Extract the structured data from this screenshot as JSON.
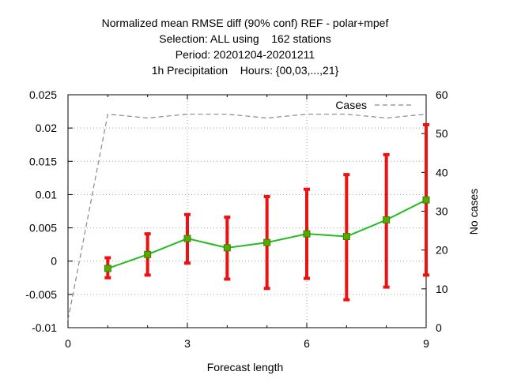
{
  "chart_data": {
    "type": "line",
    "title_lines": [
      "Normalized mean RMSE diff (90% conf) REF - polar+mpef",
      "Selection: ALL using    162 stations",
      "Period: 20201204-20201211",
      "1h Precipitation    Hours: {00,03,...,21}"
    ],
    "xlabel": "Forecast length",
    "ylabel": "",
    "y2label": "No cases",
    "xlim": [
      0,
      9
    ],
    "ylim": [
      -0.01,
      0.025
    ],
    "y2lim": [
      0,
      60
    ],
    "x_ticks": [
      "0",
      "3",
      "6",
      "9"
    ],
    "x_tick_values": [
      0,
      3,
      6,
      9
    ],
    "y_ticks": [
      "-0.01",
      "-0.005",
      "0",
      "0.005",
      "0.01",
      "0.015",
      "0.02",
      "0.025"
    ],
    "y_tick_values": [
      -0.01,
      -0.005,
      0,
      0.005,
      0.01,
      0.015,
      0.02,
      0.025
    ],
    "y2_ticks": [
      "0",
      "10",
      "20",
      "30",
      "40",
      "50",
      "60"
    ],
    "y2_tick_values": [
      0,
      10,
      20,
      30,
      40,
      50,
      60
    ],
    "grid": true,
    "legend_position": "top-right",
    "series": [
      {
        "x": [
          1,
          2,
          3,
          4,
          5,
          6,
          7,
          8,
          9
        ],
        "values": [
          -0.0011,
          0.001,
          0.0034,
          0.002,
          0.0028,
          0.0041,
          0.0037,
          0.0062,
          0.0092
        ],
        "err_low": [
          -0.0025,
          -0.0021,
          -0.0003,
          -0.0027,
          -0.0041,
          -0.0026,
          -0.0058,
          -0.0039,
          -0.0021
        ],
        "err_high": [
          0.0005,
          0.0041,
          0.007,
          0.0066,
          0.0097,
          0.0108,
          0.013,
          0.016,
          0.0205
        ],
        "color": "#22bb22",
        "marker_color": "#55aa00",
        "error_color": "#ee1111"
      },
      {
        "name": "Cases",
        "axis": "y2",
        "x": [
          0,
          1,
          2,
          3,
          4,
          5,
          6,
          7,
          8,
          9
        ],
        "values": [
          2,
          55,
          54,
          55,
          55,
          54,
          55,
          55,
          54,
          55
        ],
        "color": "#888888",
        "dashed": true
      }
    ]
  }
}
